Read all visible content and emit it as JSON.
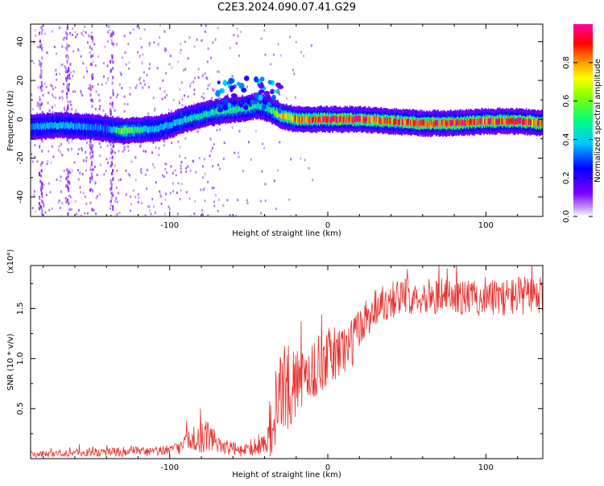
{
  "title": "C2E3.2024.090.07.41.G29",
  "chart_data": [
    {
      "type": "heatmap",
      "xlabel": "Height of straight line (km)",
      "ylabel": "Frequency (Hz)",
      "xlim": [
        -188,
        136
      ],
      "ylim": [
        -50,
        49
      ],
      "xticks": [
        -100,
        0,
        100
      ],
      "yticks": [
        -40,
        -20,
        0,
        20,
        40
      ],
      "colorbar": {
        "label": "Normalized spectral amplitude",
        "range": [
          0.0,
          1.0
        ],
        "ticks": [
          0.0,
          0.2,
          0.4,
          0.6,
          0.8
        ],
        "tick_labels": [
          "0.0",
          "0.2",
          "0.4",
          "0.6",
          "0.8"
        ]
      },
      "ridge": {
        "x": [
          -188,
          -170,
          -150,
          -140,
          -130,
          -110,
          -100,
          -90,
          -80,
          -70,
          -60,
          -50,
          -45,
          -40,
          -35,
          -30,
          -20,
          0,
          20,
          40,
          60,
          80,
          100,
          120,
          136
        ],
        "freq": [
          -4,
          -3,
          -4,
          -5,
          -6,
          -5,
          -3,
          0,
          2,
          4,
          5,
          6,
          7,
          6,
          4,
          2,
          0,
          0,
          0,
          -1,
          -2,
          -2,
          -1,
          -1,
          -2
        ],
        "amplitude": [
          0.35,
          0.4,
          0.35,
          0.3,
          0.6,
          0.4,
          0.4,
          0.45,
          0.45,
          0.5,
          0.5,
          0.5,
          0.45,
          0.4,
          0.55,
          0.7,
          0.8,
          0.9,
          0.9,
          0.85,
          0.9,
          0.9,
          0.85,
          0.9,
          0.85
        ]
      }
    },
    {
      "type": "line",
      "xlabel": "Height of straight line (km)",
      "ylabel": "SNR (10 * v/v)",
      "y_multiplier": "(x10⁴)",
      "xlim": [
        -188,
        136
      ],
      "ylim": [
        0,
        1.93
      ],
      "xticks": [
        -100,
        0,
        100
      ],
      "yticks": [
        0.5,
        1.0,
        1.5
      ],
      "ytick_labels": [
        "0.5",
        "1.0",
        "1.5"
      ],
      "color": "#e8302c",
      "envelope": {
        "x": [
          -188,
          -160,
          -130,
          -110,
          -95,
          -85,
          -75,
          -65,
          -55,
          -45,
          -38,
          -33,
          -30,
          -27,
          -22,
          -15,
          -10,
          -5,
          0,
          5,
          10,
          15,
          20,
          25,
          30,
          40,
          50,
          60,
          80,
          100,
          120,
          136
        ],
        "mean": [
          0.04,
          0.06,
          0.07,
          0.07,
          0.1,
          0.2,
          0.22,
          0.12,
          0.08,
          0.1,
          0.18,
          0.45,
          0.65,
          0.7,
          0.72,
          0.8,
          0.88,
          0.95,
          1.0,
          1.05,
          1.1,
          1.15,
          1.3,
          1.42,
          1.52,
          1.6,
          1.62,
          1.63,
          1.62,
          1.6,
          1.63,
          1.62
        ],
        "spread": [
          0.03,
          0.04,
          0.05,
          0.05,
          0.06,
          0.14,
          0.16,
          0.08,
          0.06,
          0.07,
          0.15,
          0.45,
          0.55,
          0.5,
          0.35,
          0.3,
          0.3,
          0.3,
          0.3,
          0.3,
          0.28,
          0.25,
          0.25,
          0.22,
          0.2,
          0.2,
          0.18,
          0.18,
          0.18,
          0.18,
          0.2,
          0.2
        ]
      }
    }
  ]
}
